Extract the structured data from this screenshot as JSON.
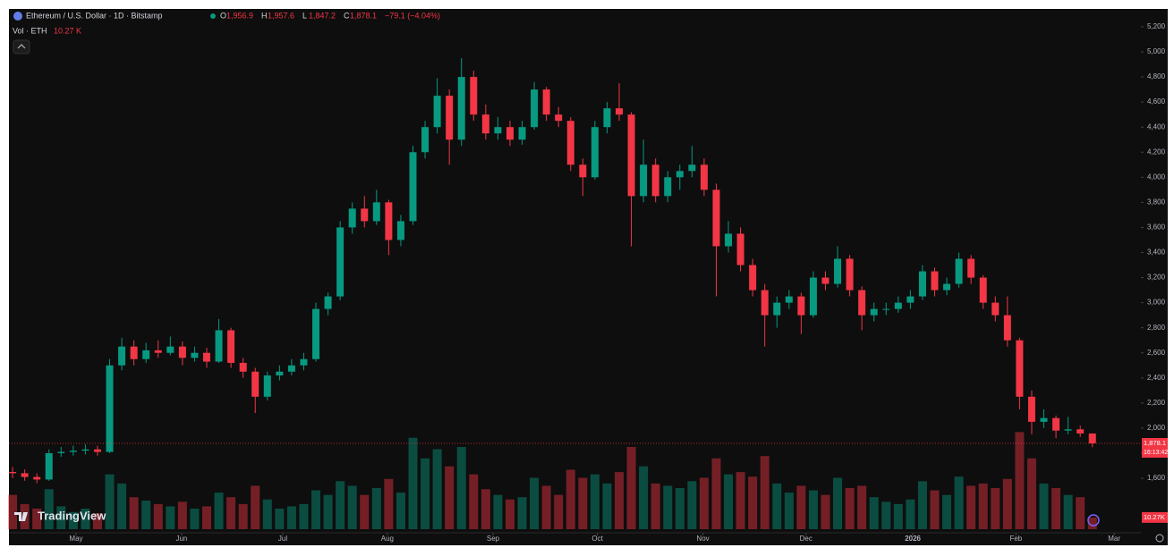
{
  "chart_data": {
    "type": "candlestick",
    "title": "Ethereum / U.S. Dollar · 1D · Bitstamp",
    "ohlc_legend": [
      {
        "key": "O",
        "text": "1,956.9"
      },
      {
        "key": "H",
        "text": "1,957.6"
      },
      {
        "key": "L",
        "text": "1,847.2"
      },
      {
        "key": "C",
        "text": "1,878.1"
      }
    ],
    "change": "−79.1 (−4.04%)",
    "branding": "TradingView",
    "up_color": "#089981",
    "down_color": "#f23645",
    "xlim": [
      -0.3,
      93
    ],
    "xticks": [
      {
        "value": 5.23,
        "label": "May"
      },
      {
        "value": 13.93,
        "label": "Jun"
      },
      {
        "value": 22.27,
        "label": "Jul"
      },
      {
        "value": 30.89,
        "label": "Aug"
      },
      {
        "value": 39.6,
        "label": "Sep"
      },
      {
        "value": 48.2,
        "label": "Oct"
      },
      {
        "value": 56.9,
        "label": "Nov"
      },
      {
        "value": 65.4,
        "label": "Dec"
      },
      {
        "value": 74.2,
        "label": "2026"
      },
      {
        "value": 82.7,
        "label": "Feb"
      },
      {
        "value": 90.8,
        "label": "Mar"
      }
    ],
    "ylim": [
      1094,
      5328
    ],
    "yticks": [
      {
        "value": 1600,
        "label": "1,600"
      },
      {
        "value": 1800,
        "label": "1,800"
      },
      {
        "value": 2000,
        "label": "2,000"
      },
      {
        "value": 2200,
        "label": "2,200"
      },
      {
        "value": 2400,
        "label": "2,400"
      },
      {
        "value": 2600,
        "label": "2,600"
      },
      {
        "value": 2800,
        "label": "2,800"
      },
      {
        "value": 3000,
        "label": "3,000"
      },
      {
        "value": 3200,
        "label": "3,200"
      },
      {
        "value": 3400,
        "label": "3,400"
      },
      {
        "value": 3600,
        "label": "3,600"
      },
      {
        "value": 3800,
        "label": "3,800"
      },
      {
        "value": 4000,
        "label": "4,000"
      },
      {
        "value": 4200,
        "label": "4,200"
      },
      {
        "value": 4400,
        "label": "4,400"
      },
      {
        "value": 4600,
        "label": "4,600"
      },
      {
        "value": 4800,
        "label": "4,800"
      },
      {
        "value": 5000,
        "label": "5,000"
      },
      {
        "value": 5200,
        "label": "5,200"
      }
    ],
    "grid": false,
    "last_price": {
      "value": 1878.1,
      "label": "1,878.1"
    },
    "countdown": "16:13:42",
    "open": [
      1650,
      1640,
      1610,
      1590,
      1800,
      1810,
      1820,
      1830,
      1810,
      2500,
      2650,
      2550,
      2620,
      2600,
      2650,
      2560,
      2600,
      2530,
      2780,
      2520,
      2450,
      2250,
      2420,
      2450,
      2500,
      2550,
      2950,
      3050,
      3600,
      3750,
      3650,
      3800,
      3500,
      3650,
      4200,
      4400,
      4650,
      4300,
      4800,
      4500,
      4350,
      4400,
      4300,
      4400,
      4700,
      4500,
      4450,
      4100,
      4000,
      4400,
      4550,
      4500,
      3850,
      4100,
      3850,
      4000,
      4050,
      4100,
      3900,
      3450,
      3550,
      3300,
      3100,
      2900,
      3000,
      3050,
      2900,
      3200,
      3150,
      3350,
      3100,
      2900,
      2950,
      2950,
      3000,
      3050,
      3250,
      3100,
      3150,
      3350,
      3200,
      3000,
      2900,
      2700,
      2250,
      2050,
      2080,
      1980,
      1990,
      1956.9
    ],
    "high": [
      1690,
      1670,
      1640,
      1830,
      1850,
      1860,
      1870,
      1860,
      2550,
      2720,
      2700,
      2680,
      2700,
      2730,
      2690,
      2650,
      2640,
      2870,
      2800,
      2560,
      2480,
      2450,
      2500,
      2550,
      2600,
      3000,
      3080,
      3650,
      3800,
      3850,
      3900,
      3820,
      3700,
      4250,
      4450,
      4790,
      4700,
      4950,
      4850,
      4580,
      4480,
      4450,
      4450,
      4760,
      4720,
      4560,
      4480,
      4150,
      4450,
      4600,
      4750,
      4520,
      4300,
      4150,
      4050,
      4100,
      4250,
      4150,
      3950,
      3650,
      3600,
      3350,
      3150,
      3050,
      3100,
      3080,
      3250,
      3250,
      3450,
      3380,
      3130,
      3000,
      3000,
      3050,
      3100,
      3300,
      3280,
      3200,
      3400,
      3380,
      3220,
      3050,
      3050,
      2720,
      2300,
      2150,
      2100,
      2090,
      2020,
      1957.6
    ],
    "low": [
      1600,
      1580,
      1560,
      1580,
      1770,
      1780,
      1790,
      1780,
      1800,
      2460,
      2500,
      2520,
      2560,
      2580,
      2500,
      2530,
      2480,
      2520,
      2480,
      2400,
      2120,
      2220,
      2380,
      2420,
      2460,
      2530,
      2900,
      3020,
      3550,
      3600,
      3620,
      3380,
      3450,
      3620,
      4150,
      4350,
      4100,
      4250,
      4450,
      4300,
      4300,
      4250,
      4260,
      4380,
      4450,
      4400,
      4050,
      3850,
      3980,
      4350,
      4450,
      3450,
      3800,
      3800,
      3800,
      3900,
      4000,
      3850,
      3050,
      3400,
      3250,
      3050,
      2650,
      2800,
      2950,
      2750,
      2880,
      3100,
      3120,
      3050,
      2780,
      2850,
      2900,
      2920,
      2950,
      3020,
      3050,
      3060,
      3120,
      3150,
      2950,
      2850,
      2650,
      2150,
      1950,
      2000,
      1920,
      1950,
      1930,
      1847.2
    ],
    "close": [
      1640,
      1610,
      1590,
      1800,
      1810,
      1820,
      1830,
      1810,
      2500,
      2650,
      2550,
      2620,
      2600,
      2650,
      2560,
      2600,
      2530,
      2780,
      2520,
      2450,
      2250,
      2420,
      2450,
      2500,
      2550,
      2950,
      3050,
      3600,
      3750,
      3650,
      3800,
      3500,
      3650,
      4200,
      4400,
      4650,
      4300,
      4800,
      4500,
      4350,
      4400,
      4300,
      4400,
      4700,
      4500,
      4450,
      4100,
      4000,
      4400,
      4550,
      4500,
      3850,
      4100,
      3850,
      4000,
      4050,
      4100,
      3900,
      3450,
      3550,
      3300,
      3100,
      2900,
      3000,
      3050,
      2900,
      3200,
      3150,
      3350,
      3100,
      2900,
      2950,
      2950,
      3000,
      3050,
      3250,
      3100,
      3150,
      3350,
      3200,
      3000,
      2900,
      2700,
      2250,
      2050,
      2080,
      1980,
      1990,
      1957,
      1878.1
    ],
    "volume": {
      "name": "Vol · ETH",
      "last": "10.27 K",
      "last_label": "10.27K",
      "ylim": [
        0,
        90
      ],
      "values": [
        30,
        22,
        18,
        35,
        20,
        15,
        18,
        14,
        48,
        40,
        28,
        25,
        22,
        20,
        24,
        18,
        20,
        32,
        28,
        22,
        38,
        26,
        18,
        20,
        22,
        34,
        30,
        42,
        38,
        30,
        36,
        44,
        32,
        80,
        62,
        70,
        55,
        72,
        48,
        35,
        30,
        26,
        28,
        45,
        38,
        30,
        52,
        45,
        48,
        40,
        50,
        72,
        55,
        40,
        38,
        36,
        42,
        45,
        62,
        48,
        50,
        46,
        64,
        40,
        32,
        38,
        34,
        30,
        45,
        36,
        38,
        28,
        24,
        22,
        26,
        42,
        34,
        30,
        46,
        38,
        40,
        36,
        44,
        85,
        62,
        40,
        36,
        30,
        28,
        10.27
      ]
    }
  }
}
